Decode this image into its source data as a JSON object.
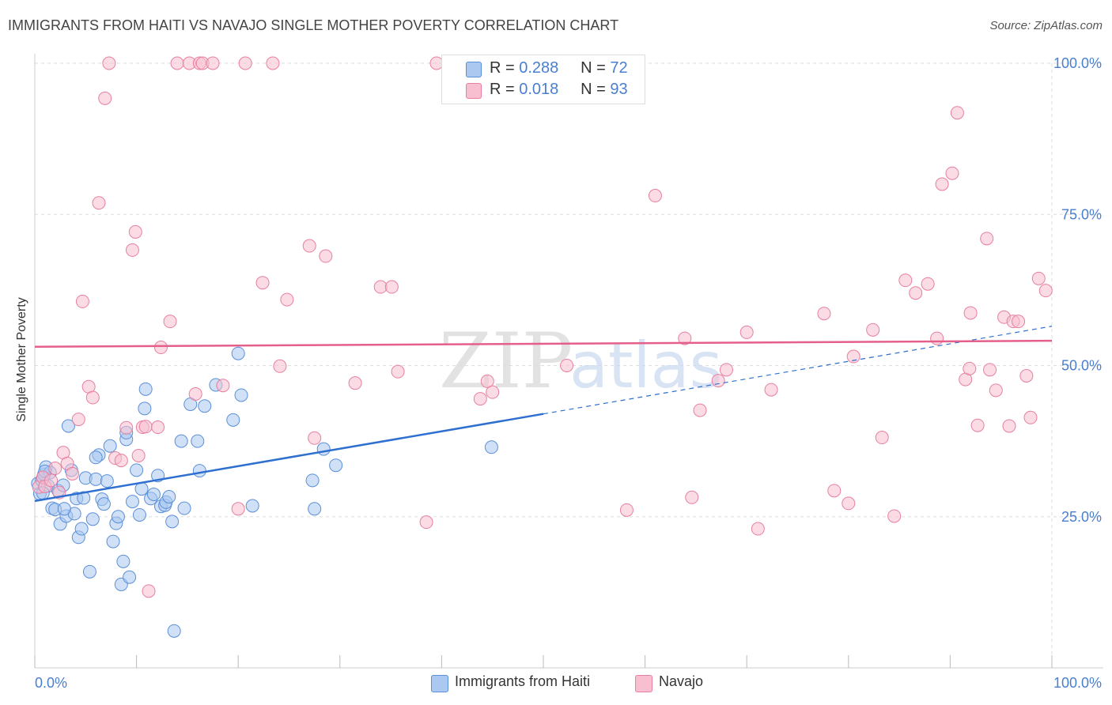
{
  "title": "IMMIGRANTS FROM HAITI VS NAVAJO SINGLE MOTHER POVERTY CORRELATION CHART",
  "source": "Source: ZipAtlas.com",
  "watermark": {
    "zip": "ZIP",
    "atlas": "atlas"
  },
  "legend": {
    "r_label": "R =",
    "n_label": "N =",
    "series1": {
      "r": "0.288",
      "n": "72"
    },
    "series2": {
      "r": "0.018",
      "n": "93"
    }
  },
  "chart_data": {
    "type": "scatter",
    "title": "IMMIGRANTS FROM HAITI VS NAVAJO SINGLE MOTHER POVERTY CORRELATION CHART",
    "xlabel": "",
    "ylabel": "Single Mother Poverty",
    "xlim": [
      0,
      100
    ],
    "ylim": [
      0,
      100
    ],
    "x_tick_labels": [
      "0.0%",
      "100.0%"
    ],
    "y_ticks": [
      25,
      50,
      75,
      100
    ],
    "y_tick_labels": [
      "25.0%",
      "50.0%",
      "75.0%",
      "100.0%"
    ],
    "grid": true,
    "legend_position": "top-center",
    "colors": {
      "haiti_fill": "#aac8f0",
      "haiti_stroke": "#5b8fd8",
      "haiti_line": "#2f6fd0",
      "navajo_fill": "#f7bfd0",
      "navajo_stroke": "#e77fa0",
      "navajo_line": "#e4608a",
      "axis_label": "#4a7fd0",
      "grid": "#dddddd"
    },
    "series": [
      {
        "name": "Immigrants from Haiti",
        "r": 0.288,
        "n": 72,
        "trend": {
          "x0": 0,
          "y0": 27.6,
          "x1": 50,
          "y1": 42.0,
          "dash_to_x": 100,
          "dash_to_y": 56.5
        },
        "points": [
          [
            0.3,
            30.5
          ],
          [
            0.5,
            28.8
          ],
          [
            0.7,
            31.0
          ],
          [
            0.9,
            32.0
          ],
          [
            1.1,
            33.2
          ],
          [
            1.3,
            30.1
          ],
          [
            1.5,
            32.3
          ],
          [
            1.7,
            26.4
          ],
          [
            2.0,
            26.2
          ],
          [
            2.3,
            29.3
          ],
          [
            2.5,
            23.8
          ],
          [
            2.8,
            30.2
          ],
          [
            3.1,
            25.1
          ],
          [
            3.3,
            40.0
          ],
          [
            3.6,
            32.7
          ],
          [
            3.9,
            25.5
          ],
          [
            4.1,
            28.0
          ],
          [
            4.3,
            21.6
          ],
          [
            4.6,
            23.0
          ],
          [
            4.8,
            28.1
          ],
          [
            5.0,
            31.4
          ],
          [
            5.4,
            15.9
          ],
          [
            5.7,
            24.6
          ],
          [
            6.0,
            31.2
          ],
          [
            6.3,
            35.2
          ],
          [
            6.6,
            27.9
          ],
          [
            6.8,
            27.1
          ],
          [
            7.1,
            30.9
          ],
          [
            7.4,
            36.7
          ],
          [
            7.7,
            20.9
          ],
          [
            8.0,
            23.9
          ],
          [
            8.2,
            25.0
          ],
          [
            8.5,
            13.8
          ],
          [
            8.7,
            17.6
          ],
          [
            9.0,
            37.8
          ],
          [
            9.3,
            15.0
          ],
          [
            9.6,
            27.5
          ],
          [
            10.0,
            32.7
          ],
          [
            10.3,
            25.3
          ],
          [
            10.5,
            29.6
          ],
          [
            10.8,
            42.9
          ],
          [
            10.9,
            46.1
          ],
          [
            11.4,
            28.0
          ],
          [
            11.7,
            28.7
          ],
          [
            12.1,
            31.8
          ],
          [
            12.4,
            26.7
          ],
          [
            12.8,
            26.9
          ],
          [
            12.9,
            27.4
          ],
          [
            13.2,
            28.3
          ],
          [
            13.5,
            24.2
          ],
          [
            13.7,
            6.1
          ],
          [
            14.4,
            37.5
          ],
          [
            14.7,
            26.4
          ],
          [
            15.3,
            43.6
          ],
          [
            16.0,
            37.5
          ],
          [
            16.2,
            32.6
          ],
          [
            16.7,
            43.3
          ],
          [
            17.8,
            46.8
          ],
          [
            19.5,
            41.0
          ],
          [
            20.0,
            52.0
          ],
          [
            20.3,
            45.1
          ],
          [
            21.4,
            26.8
          ],
          [
            27.3,
            31.0
          ],
          [
            27.5,
            26.3
          ],
          [
            28.4,
            36.2
          ],
          [
            29.6,
            33.5
          ],
          [
            44.9,
            36.5
          ],
          [
            6.0,
            34.8
          ],
          [
            0.8,
            28.9
          ],
          [
            9.0,
            38.9
          ],
          [
            2.9,
            26.3
          ],
          [
            1.0,
            32.5
          ]
        ]
      },
      {
        "name": "Navajo",
        "r": 0.018,
        "n": 93,
        "trend": {
          "x0": 0,
          "y0": 53.1,
          "x1": 100,
          "y1": 54.1
        },
        "points": [
          [
            0.4,
            29.9
          ],
          [
            0.8,
            31.5
          ],
          [
            1.0,
            30.0
          ],
          [
            1.6,
            31.0
          ],
          [
            2.0,
            33.0
          ],
          [
            2.4,
            29.0
          ],
          [
            2.8,
            35.6
          ],
          [
            3.2,
            33.8
          ],
          [
            3.7,
            32.1
          ],
          [
            4.3,
            41.1
          ],
          [
            4.7,
            60.6
          ],
          [
            5.3,
            46.5
          ],
          [
            5.7,
            44.7
          ],
          [
            6.3,
            76.9
          ],
          [
            6.9,
            94.2
          ],
          [
            7.3,
            100
          ],
          [
            7.9,
            34.7
          ],
          [
            8.5,
            34.3
          ],
          [
            9.0,
            39.7
          ],
          [
            9.6,
            69.1
          ],
          [
            9.9,
            72.1
          ],
          [
            10.2,
            35.1
          ],
          [
            10.6,
            39.8
          ],
          [
            10.9,
            39.9
          ],
          [
            11.2,
            12.7
          ],
          [
            12.1,
            39.8
          ],
          [
            12.4,
            53.0
          ],
          [
            13.3,
            57.3
          ],
          [
            14.0,
            100
          ],
          [
            15.2,
            100
          ],
          [
            15.8,
            45.3
          ],
          [
            16.2,
            100
          ],
          [
            16.5,
            100
          ],
          [
            17.5,
            100
          ],
          [
            18.5,
            46.7
          ],
          [
            20.0,
            26.3
          ],
          [
            20.7,
            100
          ],
          [
            22.4,
            63.7
          ],
          [
            23.4,
            100
          ],
          [
            24.1,
            49.9
          ],
          [
            24.8,
            60.9
          ],
          [
            27.0,
            69.8
          ],
          [
            27.5,
            38.0
          ],
          [
            28.6,
            68.1
          ],
          [
            31.5,
            47.1
          ],
          [
            34.0,
            63.0
          ],
          [
            35.1,
            63.0
          ],
          [
            35.7,
            49.0
          ],
          [
            38.5,
            24.1
          ],
          [
            39.5,
            100
          ],
          [
            43.8,
            44.5
          ],
          [
            44.5,
            47.4
          ],
          [
            45.0,
            45.6
          ],
          [
            52.3,
            50.0
          ],
          [
            58.2,
            26.1
          ],
          [
            61.0,
            78.1
          ],
          [
            63.9,
            54.5
          ],
          [
            64.6,
            28.2
          ],
          [
            65.4,
            42.6
          ],
          [
            67.2,
            47.5
          ],
          [
            68.0,
            49.3
          ],
          [
            70.0,
            55.5
          ],
          [
            71.1,
            23.0
          ],
          [
            72.4,
            46.0
          ],
          [
            77.6,
            58.6
          ],
          [
            78.6,
            29.3
          ],
          [
            80.0,
            27.2
          ],
          [
            80.5,
            51.5
          ],
          [
            82.4,
            55.9
          ],
          [
            83.3,
            38.1
          ],
          [
            84.5,
            25.1
          ],
          [
            85.6,
            64.1
          ],
          [
            86.6,
            62.0
          ],
          [
            87.8,
            63.5
          ],
          [
            88.7,
            54.5
          ],
          [
            89.2,
            80.0
          ],
          [
            90.2,
            81.8
          ],
          [
            90.7,
            91.8
          ],
          [
            91.5,
            47.7
          ],
          [
            91.9,
            49.5
          ],
          [
            92.0,
            58.7
          ],
          [
            92.7,
            40.1
          ],
          [
            93.6,
            71.0
          ],
          [
            93.9,
            49.3
          ],
          [
            94.5,
            45.9
          ],
          [
            95.3,
            58.0
          ],
          [
            95.8,
            40.0
          ],
          [
            96.2,
            57.3
          ],
          [
            96.7,
            57.3
          ],
          [
            97.5,
            48.3
          ],
          [
            97.9,
            41.4
          ],
          [
            98.7,
            64.4
          ],
          [
            99.4,
            62.4
          ]
        ]
      }
    ]
  },
  "bottom_legend": {
    "series1_label": "Immigrants from Haiti",
    "series2_label": "Navajo"
  }
}
